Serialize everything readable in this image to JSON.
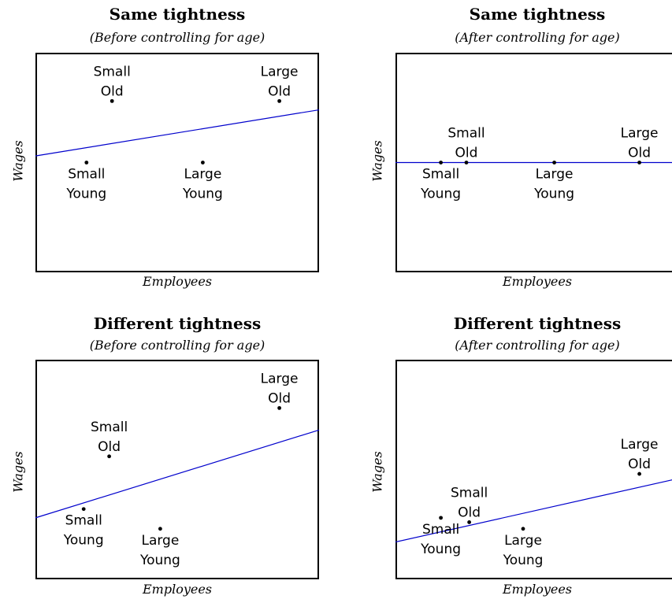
{
  "chart_data": [
    {
      "type": "scatter",
      "title": "Same tightness",
      "subtitle": "(Before controlling for age)",
      "xlabel": "Employees",
      "ylabel": "Wages",
      "xlim": [
        0,
        10
      ],
      "ylim": [
        0,
        10
      ],
      "grid": false,
      "points": [
        {
          "x": 1.8,
          "y": 5.0,
          "label": [
            "Small",
            "Young"
          ],
          "label_pos": "below"
        },
        {
          "x": 2.7,
          "y": 7.8,
          "label": [
            "Small",
            "Old"
          ],
          "label_pos": "above"
        },
        {
          "x": 5.9,
          "y": 5.0,
          "label": [
            "Large",
            "Young"
          ],
          "label_pos": "below"
        },
        {
          "x": 8.6,
          "y": 7.8,
          "label": [
            "Large",
            "Old"
          ],
          "label_pos": "above"
        }
      ],
      "line": {
        "x": [
          0,
          10
        ],
        "y": [
          5.3,
          7.4
        ],
        "color": "#0000cc"
      }
    },
    {
      "type": "scatter",
      "title": "Same tightness",
      "subtitle": "(After controlling for age)",
      "xlabel": "Employees",
      "ylabel": "Wages",
      "xlim": [
        0,
        10
      ],
      "ylim": [
        0,
        10
      ],
      "grid": false,
      "points": [
        {
          "x": 1.6,
          "y": 5.0,
          "label": [
            "Small",
            "Young"
          ],
          "label_pos": "below"
        },
        {
          "x": 2.5,
          "y": 5.0,
          "label": [
            "Small",
            "Old"
          ],
          "label_pos": "above"
        },
        {
          "x": 5.6,
          "y": 5.0,
          "label": [
            "Large",
            "Young"
          ],
          "label_pos": "below"
        },
        {
          "x": 8.6,
          "y": 5.0,
          "label": [
            "Large",
            "Old"
          ],
          "label_pos": "above"
        }
      ],
      "line": {
        "x": [
          0,
          10
        ],
        "y": [
          5.0,
          5.0
        ],
        "color": "#0000cc"
      }
    },
    {
      "type": "scatter",
      "title": "Different tightness",
      "subtitle": "(Before controlling for age)",
      "xlabel": "Employees",
      "ylabel": "Wages",
      "xlim": [
        0,
        10
      ],
      "ylim": [
        0,
        10
      ],
      "grid": false,
      "points": [
        {
          "x": 1.7,
          "y": 3.2,
          "label": [
            "Small",
            "Young"
          ],
          "label_pos": "below"
        },
        {
          "x": 2.6,
          "y": 5.6,
          "label": [
            "Small",
            "Old"
          ],
          "label_pos": "above"
        },
        {
          "x": 4.4,
          "y": 2.3,
          "label": [
            "Large",
            "Young"
          ],
          "label_pos": "below"
        },
        {
          "x": 8.6,
          "y": 7.8,
          "label": [
            "Large",
            "Old"
          ],
          "label_pos": "above"
        }
      ],
      "line": {
        "x": [
          0,
          10
        ],
        "y": [
          2.8,
          6.8
        ],
        "color": "#0000cc"
      }
    },
    {
      "type": "scatter",
      "title": "Different tightness",
      "subtitle": "(After controlling for age)",
      "xlabel": "Employees",
      "ylabel": "Wages",
      "xlim": [
        0,
        10
      ],
      "ylim": [
        0,
        10
      ],
      "grid": false,
      "points": [
        {
          "x": 1.6,
          "y": 2.8,
          "label": [
            "Small",
            "Young"
          ],
          "label_pos": "below"
        },
        {
          "x": 2.6,
          "y": 2.6,
          "label": [
            "Small",
            "Old"
          ],
          "label_pos": "above"
        },
        {
          "x": 4.5,
          "y": 2.3,
          "label": [
            "Large",
            "Young"
          ],
          "label_pos": "below"
        },
        {
          "x": 8.6,
          "y": 4.8,
          "label": [
            "Large",
            "Old"
          ],
          "label_pos": "above"
        }
      ],
      "line": {
        "x": [
          0,
          10
        ],
        "y": [
          1.7,
          4.6
        ],
        "color": "#0000cc"
      }
    }
  ]
}
